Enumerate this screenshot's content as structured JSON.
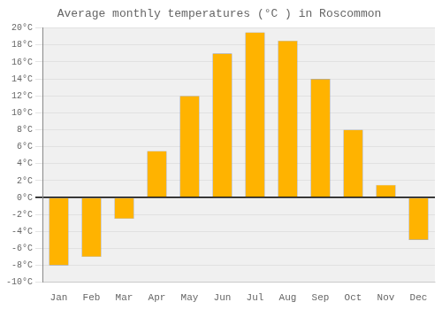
{
  "chart_data": {
    "type": "bar",
    "title": "Average monthly temperatures (°C ) in Roscommon",
    "categories": [
      "Jan",
      "Feb",
      "Mar",
      "Apr",
      "May",
      "Jun",
      "Jul",
      "Aug",
      "Sep",
      "Oct",
      "Nov",
      "Dec"
    ],
    "values": [
      -8,
      -7,
      -2.5,
      5.5,
      12,
      17,
      19.5,
      18.5,
      14,
      8,
      1.5,
      -5
    ],
    "color": "#FFB300",
    "ylim": [
      -10,
      20
    ],
    "yticks": [
      {
        "value": -10,
        "label": "-10°C"
      },
      {
        "value": -8,
        "label": "-8°C"
      },
      {
        "value": -6,
        "label": "-6°C"
      },
      {
        "value": -4,
        "label": "-4°C"
      },
      {
        "value": -2,
        "label": "-2°C"
      },
      {
        "value": 0,
        "label": "0°C"
      },
      {
        "value": 2,
        "label": "2°C"
      },
      {
        "value": 4,
        "label": "4°C"
      },
      {
        "value": 6,
        "label": "6°C"
      },
      {
        "value": 8,
        "label": "8°C"
      },
      {
        "value": 10,
        "label": "10°C"
      },
      {
        "value": 12,
        "label": "12°C"
      },
      {
        "value": 14,
        "label": "14°C"
      },
      {
        "value": 16,
        "label": "16°C"
      },
      {
        "value": 18,
        "label": "18°C"
      },
      {
        "value": 20,
        "label": "20°C"
      }
    ],
    "grid": true
  }
}
